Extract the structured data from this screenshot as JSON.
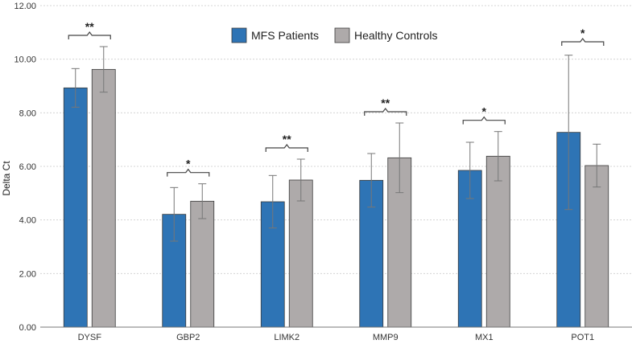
{
  "chart_data": {
    "type": "bar",
    "title": "",
    "xlabel": "",
    "ylabel": "Delta Ct",
    "ylim": [
      0,
      12
    ],
    "yticks": [
      "0.00",
      "2.00",
      "4.00",
      "6.00",
      "8.00",
      "10.00",
      "12.00"
    ],
    "categories": [
      "DYSF",
      "GBP2",
      "LIMK2",
      "MMP9",
      "MX1",
      "POT1"
    ],
    "series": [
      {
        "name": "MFS Patients",
        "color": "#2E74B5",
        "values": [
          8.93,
          4.21,
          4.68,
          5.48,
          5.85,
          7.27
        ],
        "errors": [
          0.72,
          1.0,
          0.98,
          1.0,
          1.05,
          2.88
        ]
      },
      {
        "name": "Healthy Controls",
        "color": "#AEAAAA",
        "values": [
          9.62,
          4.7,
          5.49,
          6.32,
          6.38,
          6.03
        ],
        "errors": [
          0.85,
          0.65,
          0.78,
          1.3,
          0.92,
          0.8
        ]
      }
    ],
    "significance": [
      "**",
      "*",
      "**",
      "**",
      "*",
      "*"
    ],
    "legend_position": "top-center",
    "grid": true
  }
}
